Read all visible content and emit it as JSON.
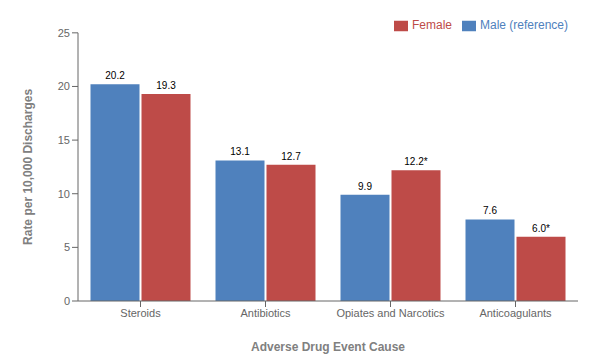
{
  "chart_data": {
    "type": "bar",
    "xlabel": "Adverse Drug Event Cause",
    "ylabel": "Rate per 10,000  Discharges",
    "categories": [
      "Steroids",
      "Antibiotics",
      "Opiates and Narcotics",
      "Anticoagulants"
    ],
    "series": [
      {
        "name": "Male (reference)",
        "color": "#4F81BD",
        "values": [
          20.2,
          13.1,
          9.9,
          7.6
        ]
      },
      {
        "name": "Female",
        "color": "#BE4B48",
        "values": [
          19.3,
          12.7,
          12.2,
          6.0
        ],
        "value_labels": [
          "19.3",
          "12.7",
          "12.2*",
          "6.0*"
        ]
      }
    ],
    "ylim": [
      0,
      25
    ],
    "yticks": [
      0,
      5,
      10,
      15,
      20,
      25
    ],
    "grid": false,
    "legend": "upper right",
    "data_labels": true
  }
}
